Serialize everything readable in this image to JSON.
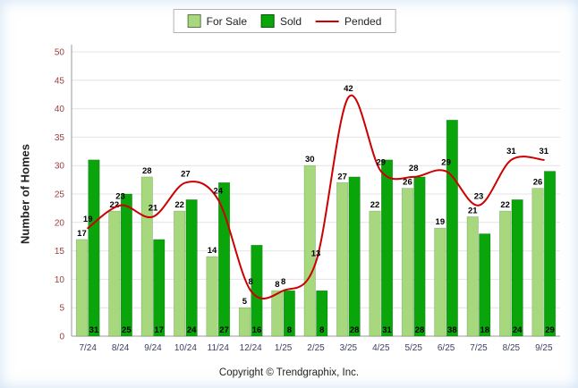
{
  "chart_data": {
    "type": "bar",
    "title": "",
    "categories": [
      "7/24",
      "8/24",
      "9/24",
      "10/24",
      "11/24",
      "12/24",
      "1/25",
      "2/25",
      "3/25",
      "4/25",
      "5/25",
      "6/25",
      "7/25",
      "8/25",
      "9/25"
    ],
    "series": [
      {
        "name": "For Sale",
        "type": "bar",
        "color": "#a8d87e",
        "values": [
          17,
          22,
          28,
          22,
          14,
          5,
          8,
          30,
          27,
          22,
          26,
          19,
          21,
          22,
          26
        ]
      },
      {
        "name": "Sold",
        "type": "bar",
        "color": "#0aa50a",
        "values": [
          31,
          25,
          17,
          24,
          27,
          16,
          8,
          8,
          28,
          31,
          28,
          38,
          18,
          24,
          29
        ]
      },
      {
        "name": "Pended",
        "type": "line",
        "color": "#cc0000",
        "values": [
          19,
          23,
          21,
          27,
          24,
          8,
          8,
          13,
          42,
          29,
          28,
          29,
          23,
          31,
          31
        ]
      }
    ],
    "xlabel": "",
    "ylabel": "Number of Homes",
    "ylim": [
      0,
      50
    ],
    "ytick_step": 5,
    "grid": true,
    "legend_position": "top",
    "data_labels": true
  },
  "colors": {
    "y_tick_label": "#99403f",
    "x_tick_label": "#3d3d66",
    "gridline": "#e4e4e4",
    "axis": "#9a9a9a"
  },
  "footer": {
    "copyright": "Copyright © Trendgraphix, Inc."
  }
}
